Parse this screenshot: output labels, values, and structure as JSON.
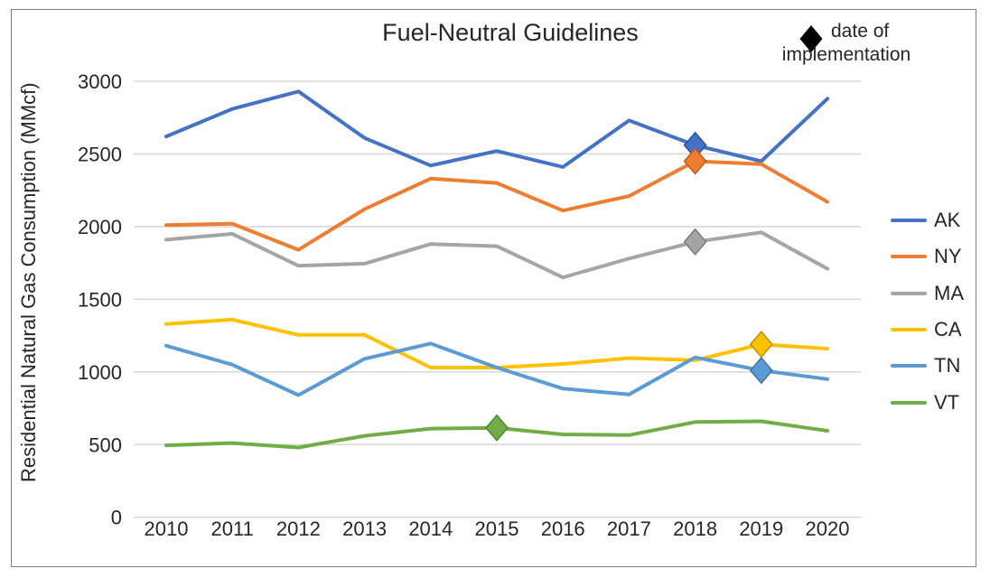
{
  "chart": {
    "title": "Fuel-Neutral Guidelines",
    "y_axis_title": "Residential Natural Gas Consumption (MMcf)",
    "implementation_note": {
      "marker": "black-diamond",
      "line1": "date of",
      "line2": "implementation"
    }
  },
  "chart_data": {
    "type": "line",
    "title": "Fuel-Neutral Guidelines",
    "xlabel": "",
    "ylabel": "Residential Natural Gas Consumption (MMcf)",
    "x": [
      2010,
      2011,
      2012,
      2013,
      2014,
      2015,
      2016,
      2017,
      2018,
      2019,
      2020
    ],
    "ylim": [
      0,
      3000
    ],
    "ytick_step": 500,
    "grid": true,
    "legend_position": "right",
    "annotation_legend": "date of implementation (black diamond markers on lines)",
    "gridline_color": "#D9D9D9",
    "text_color": "#262626",
    "series": [
      {
        "name": "AK",
        "color": "#4472C4",
        "marker_border_color": "#2F5597",
        "implementation_year": 2018,
        "values": [
          2620,
          2810,
          2930,
          2610,
          2420,
          2520,
          2410,
          2730,
          2560,
          2450,
          2880
        ]
      },
      {
        "name": "NY",
        "color": "#ED7D31",
        "marker_border_color": "#C55A11",
        "implementation_year": 2018,
        "values": [
          2010,
          2020,
          1840,
          2120,
          2330,
          2300,
          2110,
          2210,
          2450,
          2430,
          2170
        ]
      },
      {
        "name": "MA",
        "color": "#A5A5A5",
        "marker_border_color": "#7B7B7B",
        "implementation_year": 2018,
        "values": [
          1910,
          1950,
          1730,
          1745,
          1880,
          1865,
          1650,
          1780,
          1895,
          1960,
          1710
        ]
      },
      {
        "name": "CA",
        "color": "#FFC000",
        "marker_border_color": "#BF8F00",
        "implementation_year": 2019,
        "values": [
          1330,
          1360,
          1255,
          1255,
          1030,
          1030,
          1055,
          1095,
          1080,
          1190,
          1160
        ]
      },
      {
        "name": "TN",
        "color": "#5B9BD5",
        "marker_border_color": "#41719C",
        "implementation_year": 2019,
        "values": [
          1180,
          1050,
          840,
          1090,
          1195,
          1030,
          885,
          845,
          1100,
          1010,
          950
        ]
      },
      {
        "name": "VT",
        "color": "#70AD47",
        "marker_border_color": "#548235",
        "implementation_year": 2015,
        "values": [
          495,
          510,
          480,
          560,
          610,
          615,
          570,
          565,
          655,
          660,
          595
        ]
      }
    ]
  }
}
